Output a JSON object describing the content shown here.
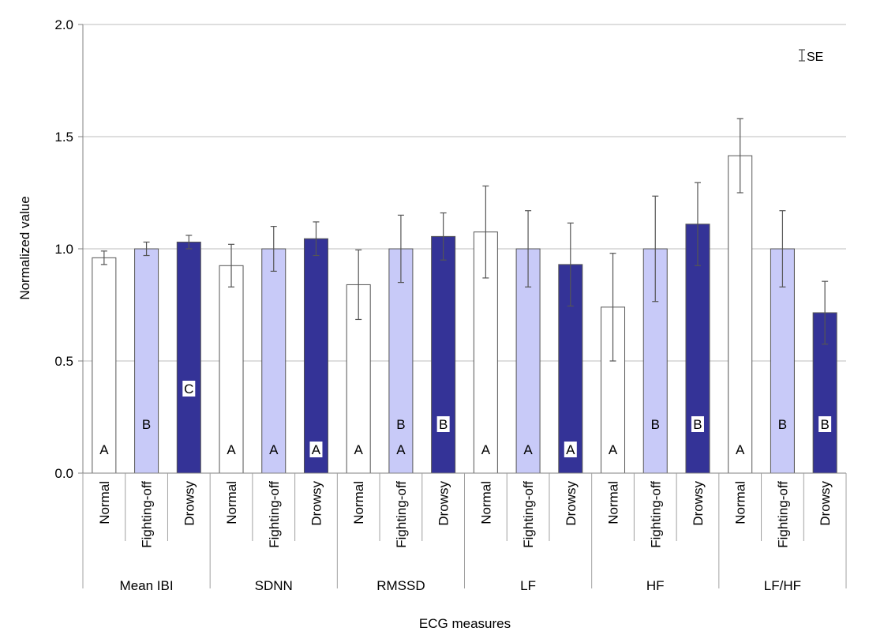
{
  "chart_data": {
    "type": "bar",
    "xlabel": "ECG measures",
    "ylabel": "Normalized value",
    "ylim": [
      0,
      2.0
    ],
    "yticks": [
      "0.0",
      "0.5",
      "1.0",
      "1.5",
      "2.0"
    ],
    "grid": true,
    "legend": {
      "label": "SE",
      "position": "top-right"
    },
    "groups": [
      "Mean IBI",
      "SDNN",
      "RMSSD",
      "LF",
      "HF",
      "LF/HF"
    ],
    "conditions": [
      "Normal",
      "Fighting-off",
      "Drowsy"
    ],
    "series": [
      {
        "name": "Normal",
        "color": "#ffffff",
        "values": [
          0.96,
          0.925,
          0.84,
          1.075,
          0.74,
          1.415
        ],
        "se": [
          0.03,
          0.095,
          0.155,
          0.205,
          0.24,
          0.165
        ],
        "letters": [
          [
            "A"
          ],
          [
            "A"
          ],
          [
            "A"
          ],
          [
            "A"
          ],
          [
            "A"
          ],
          [
            "A"
          ]
        ]
      },
      {
        "name": "Fighting-off",
        "color": "#c8caf8",
        "values": [
          1.0,
          1.0,
          1.0,
          1.0,
          1.0,
          1.0
        ],
        "se": [
          0.03,
          0.1,
          0.15,
          0.17,
          0.235,
          0.17
        ],
        "letters": [
          [
            "B"
          ],
          [
            "A"
          ],
          [
            "B",
            "A"
          ],
          [
            "A"
          ],
          [
            "B"
          ],
          [
            "B"
          ]
        ]
      },
      {
        "name": "Drowsy",
        "color": "#343397",
        "values": [
          1.03,
          1.045,
          1.055,
          0.93,
          1.11,
          0.715
        ],
        "se": [
          0.03,
          0.075,
          0.105,
          0.185,
          0.185,
          0.14
        ],
        "letters": [
          [
            "C"
          ],
          [
            "A"
          ],
          [
            "B"
          ],
          [
            "A"
          ],
          [
            "B"
          ],
          [
            "B"
          ]
        ]
      }
    ]
  }
}
